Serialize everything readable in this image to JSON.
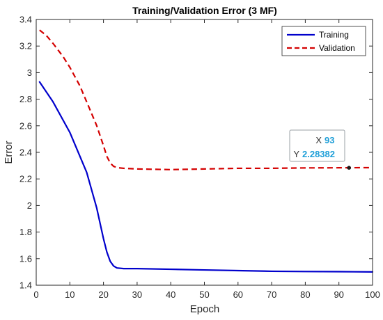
{
  "chart_data": {
    "type": "line",
    "title": "Training/Validation Error (3 MF)",
    "xlabel": "Epoch",
    "ylabel": "Error",
    "xlim": [
      0,
      100
    ],
    "ylim": [
      1.4,
      3.4
    ],
    "xticks": [
      "0",
      "10",
      "20",
      "30",
      "40",
      "50",
      "60",
      "70",
      "80",
      "90",
      "100"
    ],
    "yticks": [
      "1.4",
      "1.6",
      "1.8",
      "2",
      "2.2",
      "2.4",
      "2.6",
      "2.8",
      "3",
      "3.2",
      "3.4"
    ],
    "legend_position": "top-right",
    "grid": false,
    "series": [
      {
        "name": "Training",
        "style": "solid",
        "color": "#0000cc",
        "x": [
          1,
          5,
          10,
          15,
          18,
          20,
          21,
          22,
          23,
          24,
          26,
          30,
          40,
          50,
          60,
          70,
          80,
          90,
          100
        ],
        "y": [
          2.93,
          2.78,
          2.55,
          2.25,
          1.98,
          1.75,
          1.65,
          1.58,
          1.545,
          1.53,
          1.525,
          1.525,
          1.52,
          1.515,
          1.51,
          1.505,
          1.503,
          1.502,
          1.5
        ]
      },
      {
        "name": "Validation",
        "style": "dashed",
        "color": "#d40000",
        "x": [
          1,
          3,
          5,
          8,
          10,
          13,
          15,
          18,
          20,
          21,
          22,
          23,
          24,
          26,
          30,
          40,
          50,
          60,
          70,
          80,
          90,
          100
        ],
        "y": [
          3.32,
          3.28,
          3.22,
          3.12,
          3.04,
          2.9,
          2.78,
          2.6,
          2.45,
          2.37,
          2.32,
          2.295,
          2.285,
          2.28,
          2.275,
          2.27,
          2.275,
          2.28,
          2.28,
          2.283,
          2.284,
          2.285
        ]
      }
    ],
    "datatip": {
      "x_label": "X",
      "x_value": "93",
      "y_label": "Y",
      "y_value": "2.28382",
      "x": 93,
      "y": 2.28382
    }
  }
}
